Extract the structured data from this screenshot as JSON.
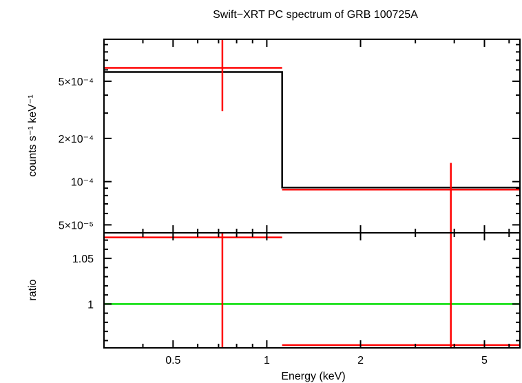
{
  "chart_data": {
    "type": "line",
    "title": "Swift−XRT PC spectrum of GRB 100725A",
    "xlabel": "Energy (keV)",
    "x_scale": "log",
    "xlim": [
      0.3,
      6.5
    ],
    "x_ticks": [
      {
        "value": 0.5,
        "label": "0.5"
      },
      {
        "value": 1,
        "label": "1"
      },
      {
        "value": 2,
        "label": "2"
      },
      {
        "value": 5,
        "label": "5"
      }
    ],
    "panels": [
      {
        "name": "spectrum",
        "ylabel": "counts s⁻¹ keV⁻¹",
        "y_scale": "log",
        "ylim": [
          4.4e-05,
          0.00098
        ],
        "y_ticks": [
          {
            "value": 5e-05,
            "label": "5×10⁻⁵"
          },
          {
            "value": 0.0001,
            "label": "10⁻⁴"
          },
          {
            "value": 0.0002,
            "label": "2×10⁻⁴"
          },
          {
            "value": 0.0005,
            "label": "5×10⁻⁴"
          }
        ],
        "data_points": [
          {
            "x": 0.72,
            "xlo": 0.3,
            "xhi": 1.12,
            "y": 0.00062,
            "ylo": 0.00031,
            "yhi": 0.00098
          },
          {
            "x": 3.9,
            "xlo": 1.12,
            "xhi": 6.5,
            "y": 8.8e-05,
            "ylo": 4.4e-05,
            "yhi": 0.000135
          }
        ],
        "model": [
          {
            "xlo": 0.3,
            "xhi": 1.12,
            "y": 0.00058
          },
          {
            "xlo": 1.12,
            "xhi": 6.5,
            "y": 9.1e-05
          }
        ],
        "colors": {
          "data": "#ff0000",
          "model": "#000000"
        }
      },
      {
        "name": "ratio",
        "ylabel": "ratio",
        "y_scale": "linear",
        "ylim": [
          0.952,
          1.078
        ],
        "y_ticks": [
          {
            "value": 1,
            "label": "1"
          },
          {
            "value": 1.05,
            "label": "1.05"
          }
        ],
        "reference": 1,
        "data_points": [
          {
            "x": 0.72,
            "xlo": 0.3,
            "xhi": 1.12,
            "y": 1.073,
            "ylo": 0.952,
            "yhi": 1.078
          },
          {
            "x": 3.9,
            "xlo": 1.12,
            "xhi": 6.5,
            "y": 0.955,
            "ylo": 0.952,
            "yhi": 1.078
          }
        ],
        "colors": {
          "data": "#ff0000",
          "reference": "#00dd00"
        }
      }
    ],
    "grid": false,
    "legend": "none"
  }
}
